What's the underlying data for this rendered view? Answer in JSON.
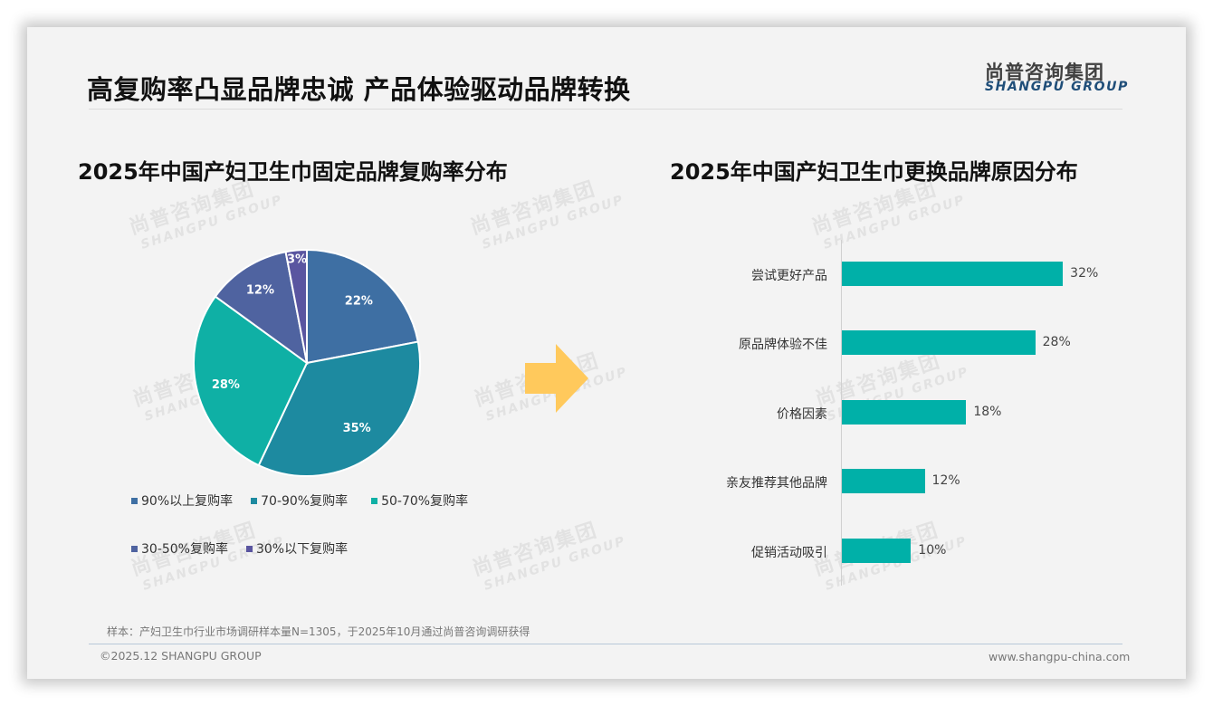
{
  "header": {
    "title": "高复购率凸显品牌忠诚 产品体验驱动品牌转换",
    "logo_cn": "尚普咨询集团",
    "logo_en": "SHANGPU GROUP"
  },
  "watermark": {
    "cn": "尚普咨询集团",
    "en": "SHANGPU GROUP"
  },
  "left_chart": {
    "title": "2025年中国产妇卫生巾固定品牌复购率分布"
  },
  "right_chart": {
    "title": "2025年中国产妇卫生巾更换品牌原因分布"
  },
  "arrow": {
    "color": "#ffc95c"
  },
  "chart_data": [
    {
      "type": "pie",
      "title": "2025年中国产妇卫生巾固定品牌复购率分布",
      "categories": [
        "90%以上复购率",
        "70-90%复购率",
        "50-70%复购率",
        "30-50%复购率",
        "30%以下复购率"
      ],
      "values": [
        22,
        35,
        28,
        12,
        3
      ],
      "value_labels": [
        "22%",
        "35%",
        "28%",
        "12%",
        "3%"
      ],
      "colors": [
        "#3e6fa3",
        "#1d8aa0",
        "#0fb0a5",
        "#4f63a0",
        "#5a55a0"
      ],
      "start_angle": "12 o'clock, clockwise",
      "legend_position": "bottom"
    },
    {
      "type": "bar",
      "orientation": "horizontal",
      "title": "2025年中国产妇卫生巾更换品牌原因分布",
      "categories": [
        "尝试更好产品",
        "原品牌体验不佳",
        "价格因素",
        "亲友推荐其他品牌",
        "促销活动吸引"
      ],
      "values": [
        32,
        28,
        18,
        12,
        10
      ],
      "value_labels": [
        "32%",
        "28%",
        "18%",
        "12%",
        "10%"
      ],
      "color": "#00b0a8",
      "xlabel": "",
      "ylabel": "",
      "grid": false
    }
  ],
  "footer": {
    "sample_note": "样本：产妇卫生巾行业市场调研样本量N=1305，于2025年10月通过尚普咨询调研获得",
    "copyright": "©2025.12 SHANGPU GROUP",
    "website": "www.shangpu-china.com"
  }
}
